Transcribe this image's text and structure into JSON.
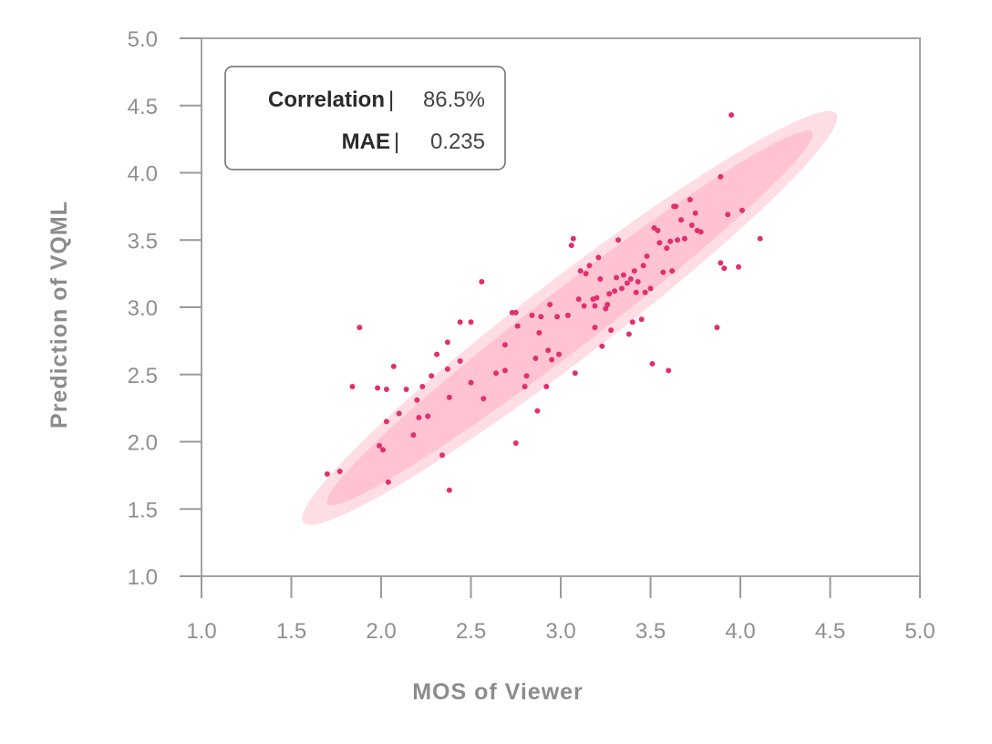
{
  "chart_data": {
    "type": "scatter",
    "title": "",
    "xlabel": "MOS of Viewer",
    "ylabel": "Prediction of VQML",
    "xlim": [
      1.0,
      5.0
    ],
    "ylim": [
      1.0,
      5.0
    ],
    "xticks": [
      "1.0",
      "1.5",
      "2.0",
      "2.5",
      "3.0",
      "3.5",
      "4.0",
      "4.5",
      "5.0"
    ],
    "yticks": [
      "1.0",
      "1.5",
      "2.0",
      "2.5",
      "3.0",
      "3.5",
      "4.0",
      "4.5",
      "5.0"
    ],
    "grid": false,
    "colors": {
      "point": "#e0306e",
      "outer_ellipse": "#ffdde4",
      "inner_ellipse": "#ffc3d1",
      "axis": "#9a9a9a"
    },
    "stats": [
      {
        "name": "Correlation",
        "separator": "|",
        "value": "86.5%"
      },
      {
        "name": "MAE",
        "separator": "|",
        "value": "0.235"
      }
    ],
    "ellipses": [
      {
        "name": "outer",
        "center": [
          3.05,
          2.92
        ],
        "rx": 1.87,
        "ry": 0.3,
        "angle_deg": 37.5
      },
      {
        "name": "inner",
        "center": [
          3.05,
          2.92
        ],
        "rx": 1.7,
        "ry": 0.22,
        "angle_deg": 37.5
      }
    ],
    "series": [
      {
        "name": "samples",
        "points": [
          [
            1.7,
            1.76
          ],
          [
            1.77,
            1.78
          ],
          [
            1.84,
            2.41
          ],
          [
            1.88,
            2.85
          ],
          [
            1.98,
            2.4
          ],
          [
            1.99,
            1.97
          ],
          [
            2.01,
            1.94
          ],
          [
            2.03,
            2.39
          ],
          [
            2.03,
            2.15
          ],
          [
            2.04,
            1.7
          ],
          [
            2.07,
            2.56
          ],
          [
            2.1,
            2.21
          ],
          [
            2.14,
            2.39
          ],
          [
            2.18,
            2.05
          ],
          [
            2.2,
            2.31
          ],
          [
            2.21,
            2.18
          ],
          [
            2.23,
            2.41
          ],
          [
            2.26,
            2.19
          ],
          [
            2.28,
            2.49
          ],
          [
            2.31,
            2.65
          ],
          [
            2.34,
            1.9
          ],
          [
            2.37,
            2.74
          ],
          [
            2.37,
            2.54
          ],
          [
            2.38,
            1.64
          ],
          [
            2.38,
            2.33
          ],
          [
            2.44,
            2.89
          ],
          [
            2.44,
            2.6
          ],
          [
            2.5,
            2.89
          ],
          [
            2.5,
            2.44
          ],
          [
            2.56,
            3.19
          ],
          [
            2.57,
            2.32
          ],
          [
            2.64,
            2.51
          ],
          [
            2.69,
            2.72
          ],
          [
            2.69,
            2.53
          ],
          [
            2.73,
            2.96
          ],
          [
            2.75,
            2.96
          ],
          [
            2.75,
            1.99
          ],
          [
            2.76,
            2.86
          ],
          [
            2.8,
            2.41
          ],
          [
            2.81,
            2.49
          ],
          [
            2.84,
            2.94
          ],
          [
            2.86,
            2.62
          ],
          [
            2.87,
            2.23
          ],
          [
            2.88,
            2.81
          ],
          [
            2.89,
            2.93
          ],
          [
            2.92,
            2.41
          ],
          [
            2.93,
            2.68
          ],
          [
            2.94,
            3.02
          ],
          [
            2.95,
            2.61
          ],
          [
            2.98,
            2.93
          ],
          [
            2.99,
            2.65
          ],
          [
            3.04,
            2.94
          ],
          [
            3.06,
            3.46
          ],
          [
            3.07,
            3.51
          ],
          [
            3.08,
            2.51
          ],
          [
            3.1,
            3.06
          ],
          [
            3.11,
            3.27
          ],
          [
            3.13,
            3.01
          ],
          [
            3.14,
            3.25
          ],
          [
            3.16,
            3.31
          ],
          [
            3.18,
            3.06
          ],
          [
            3.19,
            3.01
          ],
          [
            3.19,
            2.85
          ],
          [
            3.2,
            3.07
          ],
          [
            3.21,
            3.37
          ],
          [
            3.22,
            3.21
          ],
          [
            3.23,
            2.71
          ],
          [
            3.25,
            2.99
          ],
          [
            3.26,
            3.02
          ],
          [
            3.27,
            3.1
          ],
          [
            3.28,
            2.83
          ],
          [
            3.3,
            3.12
          ],
          [
            3.31,
            3.22
          ],
          [
            3.32,
            3.5
          ],
          [
            3.34,
            3.14
          ],
          [
            3.35,
            3.24
          ],
          [
            3.37,
            3.18
          ],
          [
            3.38,
            2.8
          ],
          [
            3.39,
            3.21
          ],
          [
            3.4,
            2.89
          ],
          [
            3.41,
            3.27
          ],
          [
            3.42,
            3.11
          ],
          [
            3.43,
            3.19
          ],
          [
            3.45,
            2.91
          ],
          [
            3.46,
            3.31
          ],
          [
            3.47,
            3.11
          ],
          [
            3.48,
            3.38
          ],
          [
            3.5,
            3.14
          ],
          [
            3.51,
            2.58
          ],
          [
            3.52,
            3.59
          ],
          [
            3.54,
            3.57
          ],
          [
            3.55,
            3.48
          ],
          [
            3.57,
            3.26
          ],
          [
            3.59,
            3.44
          ],
          [
            3.6,
            2.53
          ],
          [
            3.61,
            3.49
          ],
          [
            3.62,
            3.27
          ],
          [
            3.63,
            3.75
          ],
          [
            3.64,
            3.75
          ],
          [
            3.65,
            3.5
          ],
          [
            3.67,
            3.65
          ],
          [
            3.69,
            3.51
          ],
          [
            3.72,
            3.8
          ],
          [
            3.73,
            3.61
          ],
          [
            3.75,
            3.7
          ],
          [
            3.76,
            3.57
          ],
          [
            3.78,
            3.56
          ],
          [
            3.87,
            2.85
          ],
          [
            3.89,
            3.97
          ],
          [
            3.89,
            3.33
          ],
          [
            3.91,
            3.29
          ],
          [
            3.93,
            3.69
          ],
          [
            3.95,
            4.43
          ],
          [
            3.99,
            3.3
          ],
          [
            4.01,
            3.72
          ],
          [
            4.11,
            3.51
          ]
        ]
      }
    ]
  }
}
